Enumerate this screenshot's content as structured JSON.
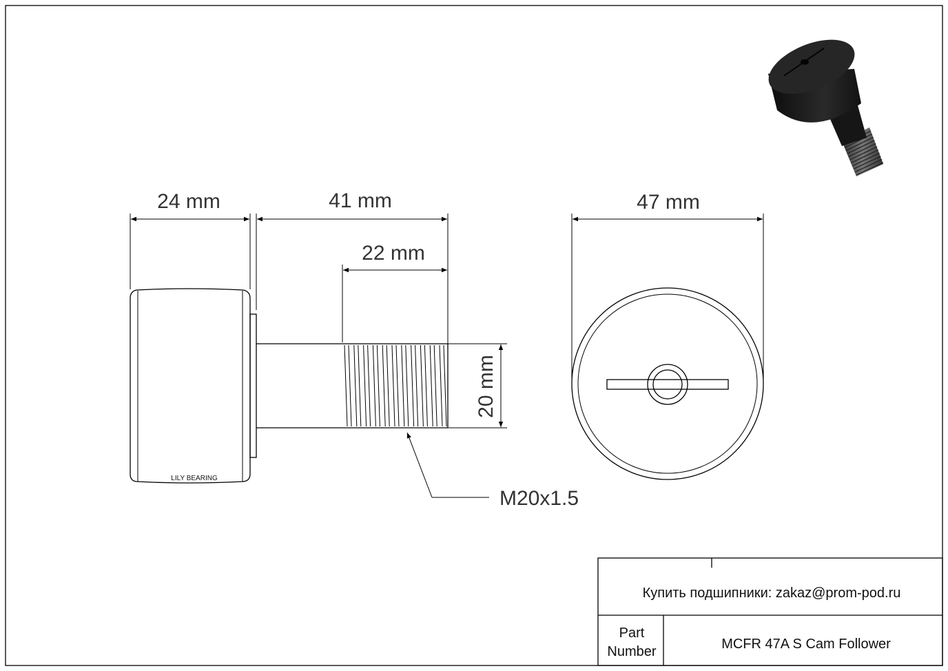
{
  "dimensions": {
    "roller_width": "24 mm",
    "stud_length": "41 mm",
    "thread_length": "22 mm",
    "stud_diameter": "20 mm",
    "outer_diameter": "47 mm",
    "thread_spec": "M20x1.5"
  },
  "roller_marking": "LILY BEARING",
  "title_block": {
    "contact": "Купить подшипники: zakaz@prom-pod.ru",
    "part_label_line1": "Part",
    "part_label_line2": "Number",
    "part_number": "MCFR 47A S Cam Follower"
  },
  "colors": {
    "line": "#000000",
    "text": "#333333",
    "product_render": "#1a1a1a"
  }
}
